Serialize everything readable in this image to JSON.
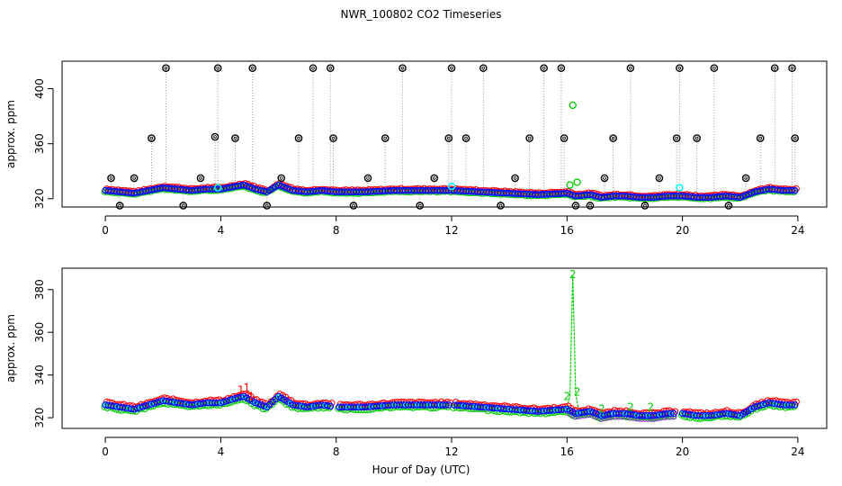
{
  "title": "NWR_100802  CO2 Timeseries",
  "xlabel": "Hour of Day (UTC)",
  "colors": {
    "black": "#000000",
    "red": "#ff0000",
    "green": "#00cd00",
    "blue": "#0000ff",
    "cyan": "#00ffff",
    "purple": "#a020f0",
    "gray": "#999999"
  },
  "chart_data": [
    {
      "type": "scatter",
      "name": "top-panel",
      "ylabel": "approx. ppm",
      "xlim": [
        -1.5,
        25
      ],
      "ylim": [
        314,
        420
      ],
      "xticks": [
        0,
        4,
        8,
        12,
        16,
        20,
        24
      ],
      "yticks": [
        320,
        360,
        400
      ],
      "baseline": {
        "x": [
          0,
          0.5,
          1,
          1.5,
          2,
          2.5,
          3,
          3.5,
          4,
          4.5,
          4.8,
          5.2,
          5.6,
          6,
          6.5,
          7,
          7.5,
          8,
          9,
          10,
          11,
          12,
          13,
          14,
          15,
          16,
          16.3,
          16.8,
          17.2,
          17.6,
          18,
          18.5,
          19,
          19.5,
          20,
          20.5,
          21,
          21.5,
          22,
          22.5,
          23,
          23.5,
          24
        ],
        "y": [
          326,
          325,
          324,
          326,
          328,
          327,
          326,
          327,
          327,
          329,
          330,
          327,
          325,
          330,
          326,
          325,
          326,
          325,
          325,
          326,
          326,
          326,
          325,
          324,
          323,
          324,
          322,
          323,
          321,
          322,
          322,
          321,
          321,
          322,
          322,
          321,
          321,
          322,
          321,
          325,
          327,
          326,
          326
        ]
      },
      "black_points": {
        "x": [
          0.5,
          1.0,
          1.6,
          2.1,
          2.7,
          3.3,
          3.8,
          3.9,
          4.5,
          5.1,
          5.6,
          6.1,
          6.7,
          7.2,
          7.8,
          7.9,
          8.6,
          9.1,
          9.7,
          10.3,
          10.9,
          11.4,
          11.9,
          12.0,
          12.5,
          13.1,
          13.7,
          14.2,
          14.7,
          15.2,
          15.8,
          15.9,
          16.3,
          16.8,
          17.3,
          17.6,
          18.2,
          18.7,
          19.2,
          19.8,
          19.9,
          20.5,
          21.1,
          21.6,
          22.2,
          22.7,
          23.2,
          23.8,
          23.9,
          0.2
        ],
        "y": [
          315,
          335,
          364,
          415,
          315,
          335,
          365,
          415,
          364,
          415,
          315,
          335,
          364,
          415,
          415,
          364,
          315,
          335,
          364,
          415,
          315,
          335,
          364,
          415,
          364,
          415,
          315,
          335,
          364,
          415,
          415,
          364,
          315,
          315,
          335,
          364,
          415,
          315,
          335,
          364,
          415,
          364,
          415,
          315,
          335,
          364,
          415,
          415,
          364,
          335
        ]
      },
      "green_outliers": {
        "x": [
          16.2,
          16.35,
          16.1
        ],
        "y": [
          388,
          332,
          330
        ]
      },
      "cyan_points": {
        "x": [
          3.9,
          12.0,
          19.9
        ],
        "y": [
          328,
          329,
          328
        ]
      }
    },
    {
      "type": "scatter",
      "name": "bottom-panel",
      "ylabel": "approx. ppm",
      "xlim": [
        -1.5,
        25
      ],
      "ylim": [
        315,
        390
      ],
      "xticks": [
        0,
        4,
        8,
        12,
        16,
        20,
        24
      ],
      "yticks": [
        320,
        340,
        360,
        380
      ],
      "gaps": [
        [
          7.8,
          8.0
        ],
        [
          11.9,
          12.0
        ],
        [
          16.0,
          16.0
        ],
        [
          19.75,
          20.0
        ]
      ],
      "baseline": {
        "x": [
          0,
          0.5,
          1,
          1.5,
          2,
          2.5,
          3,
          3.5,
          4,
          4.5,
          4.8,
          5.2,
          5.6,
          6,
          6.5,
          7,
          7.5,
          8,
          9,
          10,
          11,
          12,
          13,
          14,
          15,
          16,
          16.3,
          16.8,
          17.2,
          17.6,
          18,
          18.5,
          19,
          19.5,
          20,
          20.5,
          21,
          21.5,
          22,
          22.5,
          23,
          23.5,
          24
        ],
        "y": [
          326,
          325,
          324,
          326,
          328,
          327,
          326,
          327,
          327,
          329,
          330,
          327,
          325,
          330,
          326,
          325,
          326,
          325,
          325,
          326,
          326,
          326,
          325,
          324,
          323,
          324,
          322,
          323,
          321,
          322,
          322,
          321,
          321,
          322,
          322,
          321,
          321,
          322,
          321,
          325,
          327,
          326,
          326
        ]
      },
      "spike": {
        "x": [
          16.0,
          16.1,
          16.2,
          16.3,
          16.4
        ],
        "y": [
          325,
          330,
          387,
          331,
          324
        ]
      },
      "spike_label": "2",
      "series_labels": [
        {
          "label": "1",
          "x": 4.7,
          "y": 333,
          "series": "red"
        },
        {
          "label": "1",
          "x": 4.9,
          "y": 334,
          "series": "red"
        },
        {
          "label": "1",
          "x": 5.05,
          "y": 330,
          "series": "red"
        },
        {
          "label": "2",
          "x": 16.0,
          "y": 330,
          "series": "green"
        },
        {
          "label": "2",
          "x": 16.2,
          "y": 387,
          "series": "green"
        },
        {
          "label": "2",
          "x": 16.35,
          "y": 332,
          "series": "green"
        },
        {
          "label": "2",
          "x": 17.2,
          "y": 324,
          "series": "green"
        },
        {
          "label": "2",
          "x": 18.2,
          "y": 325,
          "series": "green"
        },
        {
          "label": "2",
          "x": 18.9,
          "y": 325,
          "series": "green"
        }
      ]
    }
  ]
}
